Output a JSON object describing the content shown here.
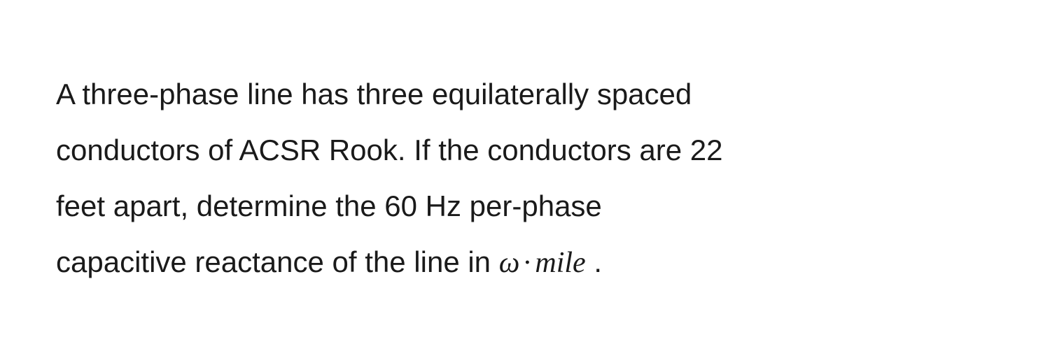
{
  "problem": {
    "line1": "A three-phase line has three equilaterally spaced",
    "line2": "conductors of ACSR Rook. If the conductors are 22",
    "line3": "feet apart, determine the 60 Hz per-phase",
    "line4_prefix": "capacitive reactance of the line in ",
    "math": {
      "omega": "ω",
      "operator": "·",
      "unit": "mile"
    },
    "line4_suffix": " ."
  },
  "style": {
    "font_size_pt": 42,
    "line_height": 1.9,
    "text_color": "#1a1a1a",
    "background_color": "#ffffff",
    "math_font_family": "Georgia, Times New Roman, serif",
    "body_font_family": "-apple-system, Helvetica Neue, Arial, sans-serif"
  }
}
